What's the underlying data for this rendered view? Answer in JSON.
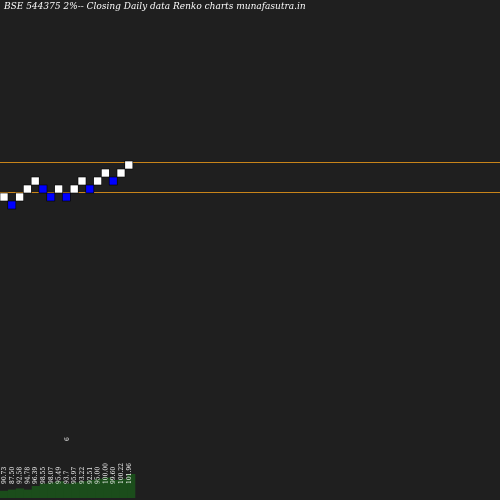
{
  "title": "BSE 544375 2%-- Closing Daily data Renko charts munafasutra.in",
  "colors": {
    "background": "#1f1f1f",
    "up_brick": "#ffffff",
    "down_brick": "#0000ff",
    "level_line": "#c8841a",
    "volume": "#1b4d1b",
    "text": "#ffffff"
  },
  "chart_data": {
    "type": "renko",
    "brick_size_percent": 2,
    "bricks": [
      {
        "dir": "up",
        "level": 0
      },
      {
        "dir": "down",
        "level": -1
      },
      {
        "dir": "up",
        "level": 0
      },
      {
        "dir": "up",
        "level": 1
      },
      {
        "dir": "up",
        "level": 2
      },
      {
        "dir": "down",
        "level": 1
      },
      {
        "dir": "down",
        "level": 0
      },
      {
        "dir": "up",
        "level": 1
      },
      {
        "dir": "down",
        "level": 0
      },
      {
        "dir": "up",
        "level": 1
      },
      {
        "dir": "up",
        "level": 2
      },
      {
        "dir": "down",
        "level": 1
      },
      {
        "dir": "up",
        "level": 2
      },
      {
        "dir": "up",
        "level": 3
      },
      {
        "dir": "down",
        "level": 2
      },
      {
        "dir": "up",
        "level": 3
      },
      {
        "dir": "up",
        "level": 4
      }
    ],
    "price_labels": [
      "90.73",
      "87.50",
      "92.58",
      "94.78",
      "96.39",
      "98.55",
      "98.07",
      "95.49",
      "93.7",
      "95.97",
      "93.22",
      "92.51",
      "95.00",
      "100.00",
      "99.60",
      "100.22",
      "101.96"
    ],
    "extra_label": "6",
    "volume": [
      6,
      7,
      8,
      7,
      10,
      12,
      13,
      14,
      12,
      13,
      14,
      15,
      16,
      17,
      15,
      16,
      20
    ]
  }
}
